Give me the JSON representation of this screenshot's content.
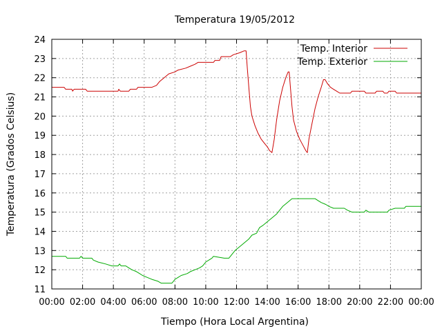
{
  "chart_data": {
    "type": "line",
    "title": "Temperatura 19/05/2012",
    "xlabel": "Tiempo (Hora Local Argentina)",
    "ylabel": "Temperatura (Grados Celsius)",
    "xlim": [
      0,
      24
    ],
    "ylim": [
      11,
      24
    ],
    "x_tick_labels": [
      "00:00",
      "02:00",
      "04:00",
      "06:00",
      "08:00",
      "10:00",
      "12:00",
      "14:00",
      "16:00",
      "18:00",
      "20:00",
      "22:00",
      "00:00"
    ],
    "y_ticks": [
      11,
      12,
      13,
      14,
      15,
      16,
      17,
      18,
      19,
      20,
      21,
      22,
      23,
      24
    ],
    "grid": true,
    "legend_position": "top-right",
    "series": [
      {
        "name": "Temp. Interior",
        "color": "#cc0000",
        "points": [
          [
            0,
            21.5
          ],
          [
            0.8,
            21.5
          ],
          [
            0.9,
            21.4
          ],
          [
            1.3,
            21.4
          ],
          [
            1.35,
            21.3
          ],
          [
            1.45,
            21.4
          ],
          [
            2.2,
            21.4
          ],
          [
            2.3,
            21.3
          ],
          [
            4.3,
            21.3
          ],
          [
            4.35,
            21.4
          ],
          [
            4.45,
            21.3
          ],
          [
            5,
            21.3
          ],
          [
            5.1,
            21.4
          ],
          [
            5.5,
            21.4
          ],
          [
            5.6,
            21.5
          ],
          [
            6.5,
            21.5
          ],
          [
            6.8,
            21.6
          ],
          [
            7,
            21.8
          ],
          [
            7.3,
            22
          ],
          [
            7.6,
            22.2
          ],
          [
            8,
            22.3
          ],
          [
            8.2,
            22.4
          ],
          [
            8.7,
            22.5
          ],
          [
            9,
            22.6
          ],
          [
            9.3,
            22.7
          ],
          [
            9.5,
            22.8
          ],
          [
            10.5,
            22.8
          ],
          [
            10.6,
            22.9
          ],
          [
            10.9,
            22.9
          ],
          [
            11,
            23.1
          ],
          [
            11.6,
            23.1
          ],
          [
            11.8,
            23.2
          ],
          [
            12.2,
            23.3
          ],
          [
            12.5,
            23.4
          ],
          [
            12.62,
            23.4
          ],
          [
            12.7,
            22.5
          ],
          [
            12.8,
            21.5
          ],
          [
            12.9,
            20.5
          ],
          [
            13,
            20
          ],
          [
            13.2,
            19.5
          ],
          [
            13.4,
            19.1
          ],
          [
            13.6,
            18.8
          ],
          [
            13.8,
            18.6
          ],
          [
            14,
            18.4
          ],
          [
            14.15,
            18.2
          ],
          [
            14.3,
            18.1
          ],
          [
            14.45,
            18.8
          ],
          [
            14.6,
            19.8
          ],
          [
            14.8,
            20.8
          ],
          [
            15,
            21.5
          ],
          [
            15.2,
            22
          ],
          [
            15.35,
            22.3
          ],
          [
            15.42,
            22.3
          ],
          [
            15.5,
            21.5
          ],
          [
            15.6,
            20.5
          ],
          [
            15.7,
            19.8
          ],
          [
            15.9,
            19.2
          ],
          [
            16.1,
            18.8
          ],
          [
            16.3,
            18.5
          ],
          [
            16.5,
            18.2
          ],
          [
            16.6,
            18.1
          ],
          [
            16.7,
            18.8
          ],
          [
            16.9,
            19.6
          ],
          [
            17.1,
            20.4
          ],
          [
            17.3,
            21
          ],
          [
            17.5,
            21.5
          ],
          [
            17.65,
            21.9
          ],
          [
            17.75,
            21.9
          ],
          [
            17.9,
            21.7
          ],
          [
            18.1,
            21.5
          ],
          [
            18.3,
            21.4
          ],
          [
            18.5,
            21.3
          ],
          [
            18.7,
            21.2
          ],
          [
            19.4,
            21.2
          ],
          [
            19.5,
            21.3
          ],
          [
            20.3,
            21.3
          ],
          [
            20.4,
            21.2
          ],
          [
            21,
            21.2
          ],
          [
            21.1,
            21.3
          ],
          [
            21.5,
            21.3
          ],
          [
            21.6,
            21.2
          ],
          [
            21.8,
            21.2
          ],
          [
            21.9,
            21.3
          ],
          [
            22.3,
            21.3
          ],
          [
            22.4,
            21.2
          ],
          [
            24,
            21.2
          ]
        ]
      },
      {
        "name": "Temp. Exterior",
        "color": "#00aa00",
        "points": [
          [
            0,
            12.7
          ],
          [
            0.9,
            12.7
          ],
          [
            1,
            12.6
          ],
          [
            1.8,
            12.6
          ],
          [
            1.9,
            12.7
          ],
          [
            2,
            12.6
          ],
          [
            2.6,
            12.6
          ],
          [
            2.7,
            12.5
          ],
          [
            3,
            12.4
          ],
          [
            3.5,
            12.3
          ],
          [
            3.9,
            12.2
          ],
          [
            4.3,
            12.2
          ],
          [
            4.4,
            12.3
          ],
          [
            4.5,
            12.2
          ],
          [
            4.8,
            12.2
          ],
          [
            5,
            12.1
          ],
          [
            5.2,
            12
          ],
          [
            5.5,
            11.9
          ],
          [
            5.7,
            11.8
          ],
          [
            5.9,
            11.7
          ],
          [
            6.2,
            11.6
          ],
          [
            6.5,
            11.5
          ],
          [
            6.9,
            11.4
          ],
          [
            7.1,
            11.3
          ],
          [
            7.8,
            11.3
          ],
          [
            7.9,
            11.4
          ],
          [
            8,
            11.5
          ],
          [
            8.2,
            11.6
          ],
          [
            8.4,
            11.7
          ],
          [
            8.8,
            11.8
          ],
          [
            9,
            11.9
          ],
          [
            9.3,
            12
          ],
          [
            9.6,
            12.1
          ],
          [
            9.8,
            12.2
          ],
          [
            10,
            12.4
          ],
          [
            10.2,
            12.5
          ],
          [
            10.4,
            12.6
          ],
          [
            10.5,
            12.7
          ],
          [
            11.2,
            12.6
          ],
          [
            11.5,
            12.6
          ],
          [
            11.7,
            12.8
          ],
          [
            11.9,
            13
          ],
          [
            12.2,
            13.2
          ],
          [
            12.5,
            13.4
          ],
          [
            12.8,
            13.6
          ],
          [
            13,
            13.8
          ],
          [
            13.3,
            13.9
          ],
          [
            13.5,
            14.2
          ],
          [
            13.7,
            14.3
          ],
          [
            14,
            14.5
          ],
          [
            14.3,
            14.7
          ],
          [
            14.6,
            14.9
          ],
          [
            14.8,
            15.1
          ],
          [
            15,
            15.3
          ],
          [
            15.3,
            15.5
          ],
          [
            15.6,
            15.7
          ],
          [
            17.1,
            15.7
          ],
          [
            17.3,
            15.6
          ],
          [
            17.5,
            15.5
          ],
          [
            17.8,
            15.4
          ],
          [
            18,
            15.3
          ],
          [
            18.3,
            15.2
          ],
          [
            19,
            15.2
          ],
          [
            19.2,
            15.1
          ],
          [
            19.5,
            15
          ],
          [
            20.3,
            15
          ],
          [
            20.4,
            15.1
          ],
          [
            20.6,
            15
          ],
          [
            21.8,
            15
          ],
          [
            21.9,
            15.1
          ],
          [
            22.3,
            15.2
          ],
          [
            22.9,
            15.2
          ],
          [
            23,
            15.3
          ],
          [
            24,
            15.3
          ]
        ]
      }
    ]
  }
}
